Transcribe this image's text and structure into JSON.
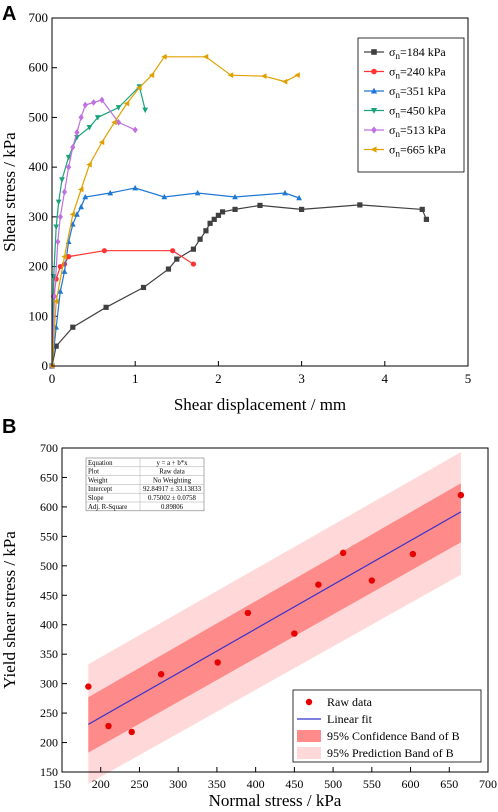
{
  "chart_data": [
    {
      "panel_label": "A",
      "type": "line",
      "xlabel": "Shear displacement / mm",
      "ylabel": "Shear stress / kPa",
      "xlim": [
        0,
        5
      ],
      "ylim": [
        0,
        700
      ],
      "xticks": [
        0,
        1,
        2,
        3,
        4,
        5
      ],
      "yticks": [
        0,
        100,
        200,
        300,
        400,
        500,
        600,
        700
      ],
      "legend_position": "top-right",
      "series": [
        {
          "name": "σn=184 kPa",
          "label_main": "σ",
          "label_sub": "n",
          "label_rest": "=184 kPa",
          "color": "#404040",
          "marker": "square",
          "x": [
            0,
            0.05,
            0.25,
            0.65,
            1.1,
            1.4,
            1.5,
            1.7,
            1.78,
            1.85,
            1.9,
            1.95,
            2.0,
            2.05,
            2.2,
            2.5,
            3.0,
            3.7,
            4.45,
            4.5
          ],
          "y": [
            0,
            40,
            78,
            118,
            158,
            195,
            215,
            235,
            255,
            272,
            287,
            295,
            303,
            310,
            315,
            323,
            315,
            324,
            315,
            295
          ]
        },
        {
          "name": "σn=240 kPa",
          "label_main": "σ",
          "label_sub": "n",
          "label_rest": "=240 kPa",
          "color": "#ff3333",
          "marker": "circle",
          "x": [
            0,
            0.02,
            0.05,
            0.1,
            0.15,
            0.2,
            0.63,
            1.45,
            1.7
          ],
          "y": [
            0,
            140,
            175,
            200,
            205,
            220,
            232,
            232,
            205
          ]
        },
        {
          "name": "σn=351 kPa",
          "label_main": "σ",
          "label_sub": "n",
          "label_rest": "=351 kPa",
          "color": "#1f77d4",
          "marker": "triangle-up",
          "x": [
            0,
            0.05,
            0.1,
            0.15,
            0.2,
            0.25,
            0.3,
            0.35,
            0.4,
            0.7,
            1.0,
            1.35,
            1.75,
            2.2,
            2.8,
            2.97
          ],
          "y": [
            0,
            78,
            150,
            190,
            250,
            285,
            305,
            320,
            340,
            348,
            358,
            340,
            348,
            340,
            348,
            338
          ]
        },
        {
          "name": "σn=450 kPa",
          "label_main": "σ",
          "label_sub": "n",
          "label_rest": "=450 kPa",
          "color": "#1aa37a",
          "marker": "triangle-down",
          "x": [
            0,
            0.02,
            0.05,
            0.08,
            0.12,
            0.2,
            0.3,
            0.45,
            0.55,
            0.8,
            1.05,
            1.12
          ],
          "y": [
            0,
            180,
            280,
            330,
            375,
            420,
            460,
            480,
            500,
            520,
            562,
            515
          ]
        },
        {
          "name": "σn=513 kPa",
          "label_main": "σ",
          "label_sub": "n",
          "label_rest": "=513 kPa",
          "color": "#c070e0",
          "marker": "diamond",
          "x": [
            0,
            0.03,
            0.07,
            0.1,
            0.15,
            0.2,
            0.25,
            0.3,
            0.35,
            0.4,
            0.5,
            0.6,
            0.8,
            1.0
          ],
          "y": [
            0,
            140,
            250,
            300,
            350,
            400,
            440,
            470,
            500,
            525,
            530,
            535,
            490,
            475
          ]
        },
        {
          "name": "σn=665 kPa",
          "label_main": "σ",
          "label_sub": "n",
          "label_rest": "=665 kPa",
          "color": "#e0a000",
          "marker": "triangle-left",
          "x": [
            0,
            0.05,
            0.15,
            0.25,
            0.35,
            0.45,
            0.6,
            0.75,
            0.9,
            1.05,
            1.2,
            1.35,
            1.85,
            2.15,
            2.55,
            2.8,
            2.95
          ],
          "y": [
            0,
            130,
            220,
            305,
            355,
            405,
            450,
            490,
            528,
            560,
            585,
            622,
            622,
            585,
            583,
            572,
            585
          ]
        }
      ]
    },
    {
      "panel_label": "B",
      "type": "scatter",
      "xlabel": "Normal stress / kPa",
      "ylabel": "Yield shear stress / kPa",
      "xlim": [
        150,
        700
      ],
      "ylim": [
        150,
        700
      ],
      "xticks": [
        150,
        200,
        250,
        300,
        350,
        400,
        450,
        500,
        550,
        600,
        650,
        700
      ],
      "yticks": [
        150,
        200,
        250,
        300,
        350,
        400,
        450,
        500,
        550,
        600,
        650,
        700
      ],
      "legend_position": "bottom-right",
      "raw_data": {
        "name": "Raw data",
        "color": "#e60000",
        "x": [
          184,
          210,
          240,
          278,
          351,
          390,
          450,
          481,
          513,
          550,
          603,
          665
        ],
        "y": [
          295,
          228,
          218,
          316,
          336,
          420,
          385,
          468,
          522,
          475,
          520,
          620
        ]
      },
      "fit": {
        "name": "Linear fit",
        "color": "#3333cc",
        "intercept": 92.84917,
        "slope": 0.75002,
        "x_range": [
          184,
          665
        ]
      },
      "confidence_band": {
        "name": "95% Confidence Band of B",
        "color": "#ff8a8a",
        "x": [
          184,
          665
        ],
        "upper": [
          277,
          640
        ],
        "lower": [
          183,
          540
        ]
      },
      "prediction_band": {
        "name": "95% Prediction Band of B",
        "color": "#ffd9d9",
        "x": [
          184,
          665
        ],
        "upper": [
          333,
          693
        ],
        "lower": [
          130,
          485
        ]
      },
      "stats_table": [
        [
          "Equation",
          "y = a + b*x"
        ],
        [
          "Plot",
          "Raw data"
        ],
        [
          "Weight",
          "No Weighting"
        ],
        [
          "Intercept",
          "92.84917 ± 33.13833"
        ],
        [
          "Slope",
          "0.75002 ± 0.0758"
        ],
        [
          "Adj. R-Square",
          "0.89806"
        ]
      ]
    }
  ]
}
